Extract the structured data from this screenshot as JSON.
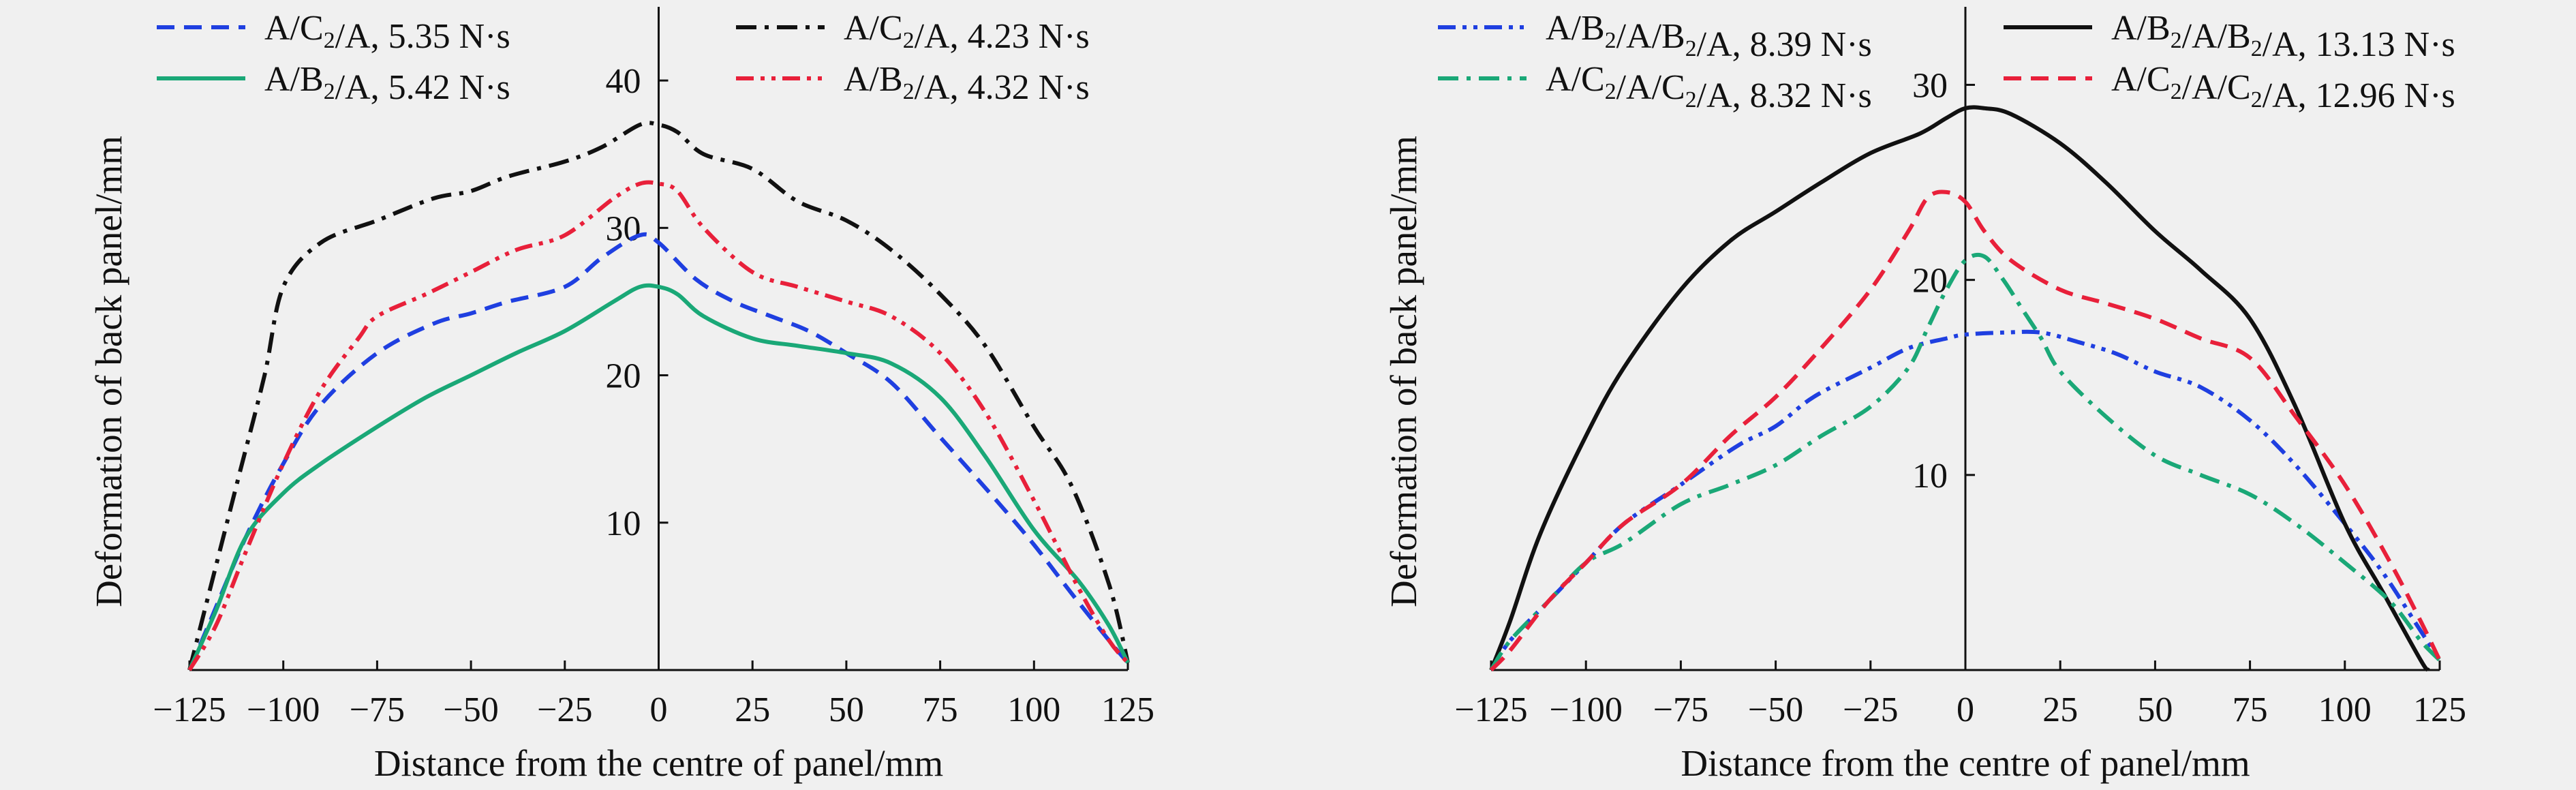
{
  "chart_data": [
    {
      "type": "line",
      "title": "",
      "xlabel": "Distance from the centre of panel/mm",
      "ylabel": "Deformation of back panel/mm",
      "xlim": [
        -125,
        125
      ],
      "ylim": [
        0,
        45
      ],
      "x_ticks": [
        -125,
        -100,
        -75,
        -50,
        -25,
        0,
        25,
        50,
        75,
        100,
        125
      ],
      "x_tick_labels": [
        "−125",
        "−100",
        "−75",
        "−50",
        "−25",
        "0",
        "25",
        "50",
        "75",
        "100",
        "125"
      ],
      "y_ticks": [
        10,
        20,
        30,
        40
      ],
      "y_tick_labels": [
        "10",
        "20",
        "30",
        "40"
      ],
      "grid": false,
      "legend_position": "top",
      "legend": [
        {
          "label": "A/C₂/A, 5.35 N·s",
          "series": 0
        },
        {
          "label": "A/C₂/A, 4.23 N·s",
          "series": 1
        },
        {
          "label": "A/B₂/A, 5.42 N·s",
          "series": 2
        },
        {
          "label": "A/B₂/A, 4.32 N·s",
          "series": 3
        }
      ],
      "series": [
        {
          "name": "A/C₂/A, 5.35 N·s",
          "color": "#1f3fe0",
          "dash": "dash",
          "x": [
            -125,
            -120,
            -110,
            -100,
            -90,
            -75,
            -60,
            -50,
            -40,
            -25,
            -15,
            -5,
            0,
            10,
            20,
            30,
            40,
            50,
            62,
            75,
            90,
            100,
            110,
            120,
            125
          ],
          "y": [
            0,
            3,
            9,
            14,
            18,
            21.5,
            23.5,
            24.2,
            25,
            26,
            28,
            29.5,
            29,
            26.5,
            25,
            24,
            23,
            21.5,
            19.5,
            15.8,
            11.5,
            8.5,
            5.2,
            2,
            0.5
          ]
        },
        {
          "name": "A/C₂/A, 4.23 N·s",
          "color": "#111111",
          "dash": "dashdot",
          "x": [
            -125,
            -120,
            -112,
            -105,
            -100,
            -90,
            -75,
            -60,
            -50,
            -40,
            -25,
            -15,
            -5,
            0,
            5,
            12,
            25,
            37,
            50,
            62,
            75,
            87,
            100,
            110,
            120,
            125
          ],
          "y": [
            0,
            5,
            13,
            20,
            26,
            29,
            30.5,
            32,
            32.5,
            33.5,
            34.5,
            35.5,
            37,
            37,
            36.5,
            35,
            34,
            31.8,
            30.5,
            28.5,
            25.5,
            22,
            16.5,
            12.5,
            5.8,
            0.5
          ]
        },
        {
          "name": "A/B₂/A, 5.42 N·s",
          "color": "#1aa877",
          "dash": "solid",
          "x": [
            -125,
            -118,
            -110,
            -100,
            -90,
            -75,
            -62,
            -50,
            -38,
            -25,
            -12,
            -5,
            0,
            5,
            12,
            25,
            37,
            50,
            62,
            75,
            87,
            100,
            112,
            120,
            125
          ],
          "y": [
            0,
            4,
            9,
            12,
            14,
            16.5,
            18.5,
            20,
            21.5,
            23,
            25,
            26,
            26,
            25.5,
            24,
            22.5,
            22,
            21.5,
            20.8,
            18.5,
            14.5,
            9.5,
            6,
            3,
            0.5
          ]
        },
        {
          "name": "A/B₂/A, 4.32 N·s",
          "color": "#e8203a",
          "dash": "dashdotdot",
          "x": [
            -125,
            -118,
            -110,
            -100,
            -90,
            -80,
            -75,
            -62,
            -50,
            -38,
            -25,
            -12,
            -5,
            0,
            5,
            12,
            25,
            37,
            50,
            62,
            75,
            87,
            100,
            112,
            120,
            125
          ],
          "y": [
            0,
            3,
            8,
            14,
            19,
            22.5,
            24,
            25.5,
            27,
            28.5,
            29.5,
            32,
            33,
            33,
            32.5,
            30,
            27,
            26,
            25,
            24,
            21.5,
            17.5,
            11.5,
            5.5,
            2,
            0.5
          ]
        }
      ]
    },
    {
      "type": "line",
      "title": "",
      "xlabel": "Distance from the centre of panel/mm",
      "ylabel": "Deformation of back panel/mm",
      "xlim": [
        -125,
        125
      ],
      "ylim": [
        0,
        34
      ],
      "x_ticks": [
        -125,
        -100,
        -75,
        -50,
        -25,
        0,
        25,
        50,
        75,
        100,
        125
      ],
      "x_tick_labels": [
        "−125",
        "−100",
        "−75",
        "−50",
        "−25",
        "0",
        "25",
        "50",
        "75",
        "100",
        "125"
      ],
      "y_ticks": [
        10,
        20,
        30
      ],
      "y_tick_labels": [
        "10",
        "20",
        "30"
      ],
      "grid": false,
      "legend_position": "top",
      "legend": [
        {
          "label": "A/B₂/A/B₂/A, 8.39 N·s",
          "series": 0
        },
        {
          "label": "A/B₂/A/B₂/A, 13.13 N·s",
          "series": 1
        },
        {
          "label": "A/C₂/A/C₂/A, 8.32 N·s",
          "series": 2
        },
        {
          "label": "A/C₂/A/C₂/A, 12.96 N·s",
          "series": 3
        }
      ],
      "series": [
        {
          "name": "A/B₂/A/B₂/A, 8.39 N·s",
          "color": "#1f3fe0",
          "dash": "dashdotdot",
          "x": [
            -125,
            -120,
            -110,
            -100,
            -90,
            -75,
            -60,
            -50,
            -40,
            -25,
            -15,
            -5,
            0,
            10,
            20,
            30,
            40,
            50,
            62,
            75,
            87,
            100,
            110,
            120,
            125
          ],
          "y": [
            0,
            1.5,
            3.5,
            5.5,
            7.5,
            9.5,
            11.5,
            12.5,
            14,
            15.5,
            16.5,
            17,
            17.2,
            17.3,
            17.3,
            16.8,
            16.2,
            15.3,
            14.5,
            12.8,
            10.5,
            7.5,
            5,
            2,
            0.5
          ]
        },
        {
          "name": "A/B₂/A/B₂/A, 13.13 N·s",
          "color": "#111111",
          "dash": "solid",
          "x": [
            -125,
            -120,
            -112,
            -100,
            -90,
            -75,
            -62,
            -50,
            -38,
            -25,
            -12,
            -5,
            0,
            5,
            12,
            25,
            37,
            50,
            62,
            75,
            87,
            100,
            110,
            120,
            122
          ],
          "y": [
            0,
            2.5,
            7,
            12,
            15.5,
            19.5,
            22,
            23.5,
            25,
            26.5,
            27.5,
            28.3,
            28.8,
            28.8,
            28.5,
            27,
            25,
            22.5,
            20.5,
            18,
            13.5,
            7.5,
            4,
            0.5,
            0
          ]
        },
        {
          "name": "A/C₂/A/C₂/A, 8.32 N·s",
          "color": "#1aa877",
          "dash": "dashdot",
          "x": [
            -125,
            -120,
            -110,
            -100,
            -90,
            -75,
            -62,
            -50,
            -38,
            -25,
            -15,
            -10,
            -5,
            0,
            5,
            10,
            15,
            20,
            25,
            37,
            50,
            62,
            75,
            87,
            100,
            112,
            120,
            125
          ],
          "y": [
            0,
            1.5,
            3.5,
            5.5,
            6.5,
            8.5,
            9.5,
            10.5,
            12,
            13.5,
            15.5,
            17.5,
            19.5,
            21,
            21.2,
            20,
            18.5,
            17,
            15.3,
            13,
            11,
            10,
            9,
            7.5,
            5.5,
            3.5,
            1.5,
            0.5
          ]
        },
        {
          "name": "A/C₂/A/C₂/A, 12.96 N·s",
          "color": "#e8203a",
          "dash": "dash",
          "x": [
            -125,
            -120,
            -110,
            -100,
            -90,
            -75,
            -62,
            -50,
            -38,
            -25,
            -15,
            -10,
            -5,
            0,
            5,
            12,
            25,
            37,
            50,
            62,
            75,
            87,
            100,
            112,
            120,
            125
          ],
          "y": [
            0,
            1,
            3.5,
            5.5,
            7.5,
            9.5,
            12,
            14,
            16.5,
            19.5,
            22.5,
            24.2,
            24.5,
            24,
            22.5,
            21,
            19.5,
            18.8,
            18,
            17,
            16,
            13,
            9.5,
            5.5,
            2.5,
            0.5
          ]
        }
      ]
    }
  ]
}
